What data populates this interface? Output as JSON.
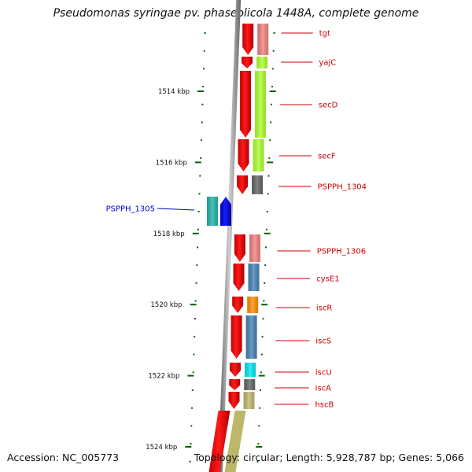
{
  "title": "Pseudomonas syringae pv. phaseolicola 1448A, complete genome",
  "footer": {
    "accession": "Accession: NC_005773",
    "stats": "Topology: circular; Length: 5,928,787 bp; Genes: 5,066"
  },
  "colors": {
    "forward_cds": "#ff0000",
    "reverse_cds": "#0000ff",
    "forward_label": "#cc0000",
    "reverse_label": "#0000cc",
    "tick": "#006400",
    "backbone": "#888888"
  },
  "scale_labels": [
    {
      "text": "1514 kbp",
      "value": 1514
    },
    {
      "text": "1516 kbp",
      "value": 1516
    },
    {
      "text": "1518 kbp",
      "value": 1518
    },
    {
      "text": "1520 kbp",
      "value": 1520
    },
    {
      "text": "1522 kbp",
      "value": 1522
    },
    {
      "text": "1524 kbp",
      "value": 1524
    }
  ],
  "genes": [
    {
      "name": "tgt",
      "strand": "+",
      "function_color": "#f08080"
    },
    {
      "name": "yajC",
      "strand": "+",
      "function_color": "#adff2f"
    },
    {
      "name": "secD",
      "strand": "+",
      "function_color": "#adff2f"
    },
    {
      "name": "secF",
      "strand": "+",
      "function_color": "#adff2f"
    },
    {
      "name": "PSPPH_1304",
      "strand": "+",
      "function_color": "#646464"
    },
    {
      "name": "PSPPH_1305",
      "strand": "-",
      "function_color": "#20b2aa"
    },
    {
      "name": "PSPPH_1306",
      "strand": "+",
      "function_color": "#f08080"
    },
    {
      "name": "cysE1",
      "strand": "+",
      "function_color": "#4682b4"
    },
    {
      "name": "iscR",
      "strand": "+",
      "function_color": "#ff8c00"
    },
    {
      "name": "iscS",
      "strand": "+",
      "function_color": "#4682b4"
    },
    {
      "name": "iscU",
      "strand": "+",
      "function_color": "#00e5ee"
    },
    {
      "name": "iscA",
      "strand": "+",
      "function_color": "#646464"
    },
    {
      "name": "hscB",
      "strand": "+",
      "function_color": "#bdb76b"
    }
  ]
}
